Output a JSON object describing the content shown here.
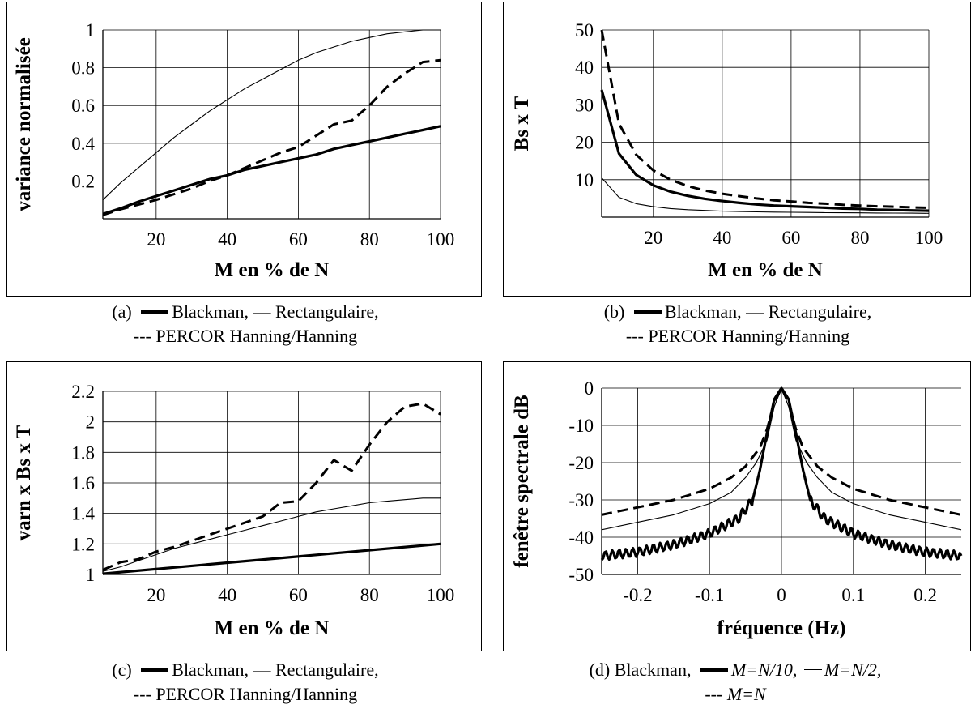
{
  "chart_data": [
    {
      "id": "a",
      "type": "line",
      "xlabel": "M en % de N",
      "ylabel": "variance normalisée",
      "xlim": [
        5,
        100
      ],
      "ylim": [
        0,
        1
      ],
      "xticks": [
        "20",
        "40",
        "60",
        "80",
        "100"
      ],
      "xtick_values": [
        20,
        40,
        60,
        80,
        100
      ],
      "yticks": [
        "0.2",
        "0.4",
        "0.6",
        "0.8",
        "1"
      ],
      "ytick_values": [
        0.2,
        0.4,
        0.6,
        0.8,
        1
      ],
      "grid": true,
      "series": [
        {
          "name": "Rectangulaire",
          "style": "thin",
          "x": [
            5,
            10,
            15,
            20,
            25,
            30,
            35,
            40,
            45,
            50,
            55,
            60,
            65,
            70,
            75,
            80,
            85,
            90,
            95,
            100
          ],
          "y": [
            0.1,
            0.19,
            0.27,
            0.35,
            0.43,
            0.5,
            0.57,
            0.63,
            0.69,
            0.74,
            0.79,
            0.84,
            0.88,
            0.91,
            0.94,
            0.96,
            0.98,
            0.99,
            1.0,
            1.0
          ]
        },
        {
          "name": "Blackman",
          "style": "thick",
          "x": [
            5,
            10,
            15,
            20,
            25,
            30,
            35,
            40,
            45,
            50,
            55,
            60,
            65,
            70,
            75,
            80,
            85,
            90,
            95,
            100
          ],
          "y": [
            0.025,
            0.055,
            0.09,
            0.12,
            0.15,
            0.18,
            0.21,
            0.23,
            0.26,
            0.28,
            0.3,
            0.32,
            0.34,
            0.37,
            0.39,
            0.41,
            0.43,
            0.45,
            0.47,
            0.49
          ]
        },
        {
          "name": "PERCOR Hanning/Hanning",
          "style": "dashed",
          "x": [
            5,
            10,
            15,
            20,
            25,
            30,
            35,
            40,
            45,
            50,
            55,
            60,
            65,
            70,
            75,
            80,
            85,
            90,
            95,
            100
          ],
          "y": [
            0.02,
            0.05,
            0.075,
            0.1,
            0.13,
            0.16,
            0.2,
            0.23,
            0.27,
            0.31,
            0.35,
            0.38,
            0.44,
            0.5,
            0.52,
            0.6,
            0.7,
            0.77,
            0.83,
            0.84
          ]
        }
      ]
    },
    {
      "id": "b",
      "type": "line",
      "xlabel": "M en % de N",
      "ylabel": "Bs x T",
      "xlim": [
        5,
        100
      ],
      "ylim": [
        0,
        50
      ],
      "xticks": [
        "20",
        "40",
        "60",
        "80",
        "100"
      ],
      "xtick_values": [
        20,
        40,
        60,
        80,
        100
      ],
      "yticks": [
        "10",
        "20",
        "30",
        "40",
        "50"
      ],
      "ytick_values": [
        10,
        20,
        30,
        40,
        50
      ],
      "grid": true,
      "series": [
        {
          "name": "PERCOR Hanning/Hanning",
          "style": "dashed",
          "x": [
            5,
            10,
            15,
            20,
            25,
            30,
            35,
            40,
            45,
            50,
            55,
            60,
            65,
            70,
            75,
            80,
            85,
            90,
            95,
            100
          ],
          "y": [
            50,
            25,
            16.7,
            12.5,
            10,
            8.3,
            7.1,
            6.25,
            5.6,
            5,
            4.5,
            4.2,
            3.8,
            3.6,
            3.3,
            3.1,
            2.9,
            2.8,
            2.6,
            2.5
          ]
        },
        {
          "name": "Blackman",
          "style": "thick",
          "x": [
            5,
            10,
            15,
            20,
            25,
            30,
            35,
            40,
            45,
            50,
            55,
            60,
            65,
            70,
            75,
            80,
            85,
            90,
            95,
            100
          ],
          "y": [
            34,
            17,
            11.3,
            8.5,
            6.8,
            5.7,
            4.9,
            4.3,
            3.8,
            3.4,
            3.1,
            2.9,
            2.7,
            2.5,
            2.3,
            2.2,
            2.0,
            1.9,
            1.8,
            1.7
          ]
        },
        {
          "name": "Rectangulaire",
          "style": "thin",
          "x": [
            5,
            10,
            15,
            20,
            25,
            30,
            35,
            40,
            45,
            50,
            55,
            60,
            65,
            70,
            75,
            80,
            85,
            90,
            95,
            100
          ],
          "y": [
            10.5,
            5.3,
            3.6,
            2.8,
            2.3,
            2.0,
            1.8,
            1.6,
            1.5,
            1.4,
            1.35,
            1.3,
            1.25,
            1.2,
            1.17,
            1.14,
            1.11,
            1.08,
            1.05,
            1.02
          ]
        }
      ]
    },
    {
      "id": "c",
      "type": "line",
      "xlabel": "M en % de N",
      "ylabel": "varn x Bs x T",
      "xlim": [
        5,
        100
      ],
      "ylim": [
        1,
        2.2
      ],
      "xticks": [
        "20",
        "40",
        "60",
        "80",
        "100"
      ],
      "xtick_values": [
        20,
        40,
        60,
        80,
        100
      ],
      "yticks": [
        "1",
        "1.2",
        "1.4",
        "1.6",
        "1.8",
        "2",
        "2.2"
      ],
      "ytick_values": [
        1,
        1.2,
        1.4,
        1.6,
        1.8,
        2,
        2.2
      ],
      "grid": true,
      "series": [
        {
          "name": "PERCOR Hanning/Hanning",
          "style": "dashed",
          "x": [
            5,
            10,
            15,
            20,
            25,
            30,
            35,
            40,
            45,
            50,
            55,
            60,
            65,
            70,
            75,
            80,
            85,
            90,
            95,
            100
          ],
          "y": [
            1.03,
            1.08,
            1.1,
            1.15,
            1.18,
            1.22,
            1.26,
            1.3,
            1.34,
            1.38,
            1.47,
            1.48,
            1.6,
            1.75,
            1.68,
            1.85,
            2.0,
            2.1,
            2.12,
            2.05
          ]
        },
        {
          "name": "Rectangulaire",
          "style": "thin",
          "x": [
            5,
            10,
            15,
            20,
            25,
            30,
            35,
            40,
            45,
            50,
            55,
            60,
            65,
            70,
            75,
            80,
            85,
            90,
            95,
            100
          ],
          "y": [
            1.02,
            1.05,
            1.09,
            1.13,
            1.17,
            1.2,
            1.23,
            1.26,
            1.29,
            1.32,
            1.35,
            1.38,
            1.41,
            1.43,
            1.45,
            1.47,
            1.48,
            1.49,
            1.5,
            1.5
          ]
        },
        {
          "name": "Blackman",
          "style": "thick",
          "x": [
            5,
            100
          ],
          "y": [
            1.005,
            1.2
          ]
        }
      ]
    },
    {
      "id": "d",
      "type": "line",
      "xlabel": "fréquence (Hz)",
      "ylabel": "fenêtre spectrale dB",
      "xlim": [
        -0.25,
        0.25
      ],
      "ylim": [
        -50,
        0
      ],
      "xticks": [
        "-0.2",
        "-0.1",
        "0",
        "0.1",
        "0.2"
      ],
      "xtick_values": [
        -0.2,
        -0.1,
        0,
        0.1,
        0.2
      ],
      "yticks": [
        "0",
        "-10",
        "-20",
        "-30",
        "-40",
        "-50"
      ],
      "ytick_values": [
        0,
        -10,
        -20,
        -30,
        -40,
        -50
      ],
      "grid": true,
      "series": [
        {
          "name": "M=N",
          "style": "dashed",
          "x": [
            -0.25,
            -0.2,
            -0.15,
            -0.1,
            -0.07,
            -0.05,
            -0.03,
            -0.02,
            -0.01,
            0,
            0.01,
            0.02,
            0.03,
            0.05,
            0.07,
            0.1,
            0.15,
            0.2,
            0.25
          ],
          "y": [
            -34,
            -32,
            -30,
            -27,
            -24,
            -21,
            -16,
            -11,
            -4,
            0,
            -4,
            -11,
            -16,
            -21,
            -24,
            -27,
            -30,
            -32,
            -34
          ]
        },
        {
          "name": "M=N/2",
          "style": "thin",
          "x": [
            -0.25,
            -0.2,
            -0.15,
            -0.1,
            -0.07,
            -0.05,
            -0.035,
            -0.02,
            -0.01,
            0,
            0.01,
            0.02,
            0.035,
            0.05,
            0.07,
            0.1,
            0.15,
            0.2,
            0.25
          ],
          "y": [
            -38,
            -36,
            -34,
            -31,
            -28,
            -24,
            -20,
            -14,
            -5,
            0,
            -5,
            -14,
            -20,
            -24,
            -28,
            -31,
            -34,
            -36,
            -38
          ]
        },
        {
          "name": "M=N/10",
          "style": "thick",
          "x": [
            -0.25,
            -0.2,
            -0.15,
            -0.1,
            -0.06,
            -0.04,
            -0.03,
            -0.02,
            -0.01,
            0,
            0.01,
            0.02,
            0.03,
            0.04,
            0.06,
            0.1,
            0.15,
            0.2,
            0.25
          ],
          "y": [
            -45,
            -44,
            -42,
            -39,
            -35,
            -30,
            -22,
            -12,
            -3,
            0,
            -3,
            -12,
            -22,
            -30,
            -35,
            -39,
            -42,
            -44,
            -45
          ],
          "ripple": {
            "amplitude": 1.2,
            "period": 0.0095,
            "applies_when_abs_x_above": 0.04
          }
        }
      ]
    }
  ],
  "captions": [
    {
      "id": "a",
      "line1_prefix": "(a)",
      "line1_a": "Blackman,",
      "line1_b": "— Rectangulaire,",
      "line2": "--- PERCOR Hanning/Hanning"
    },
    {
      "id": "b",
      "line1_prefix": "(b)",
      "line1_a": "Blackman,",
      "line1_b": "— Rectangulaire,",
      "line2": "--- PERCOR Hanning/Hanning"
    },
    {
      "id": "c",
      "line1_prefix": "(c)",
      "line1_a": "Blackman,",
      "line1_b": "— Rectangulaire,",
      "line2": "--- PERCOR Hanning/Hanning"
    },
    {
      "id": "d",
      "line1_prefix": "(d) Blackman,",
      "m1": "M=N/10,",
      "m2": "M=N/2,",
      "line2_prefix": "---",
      "m3": "M=N"
    }
  ]
}
